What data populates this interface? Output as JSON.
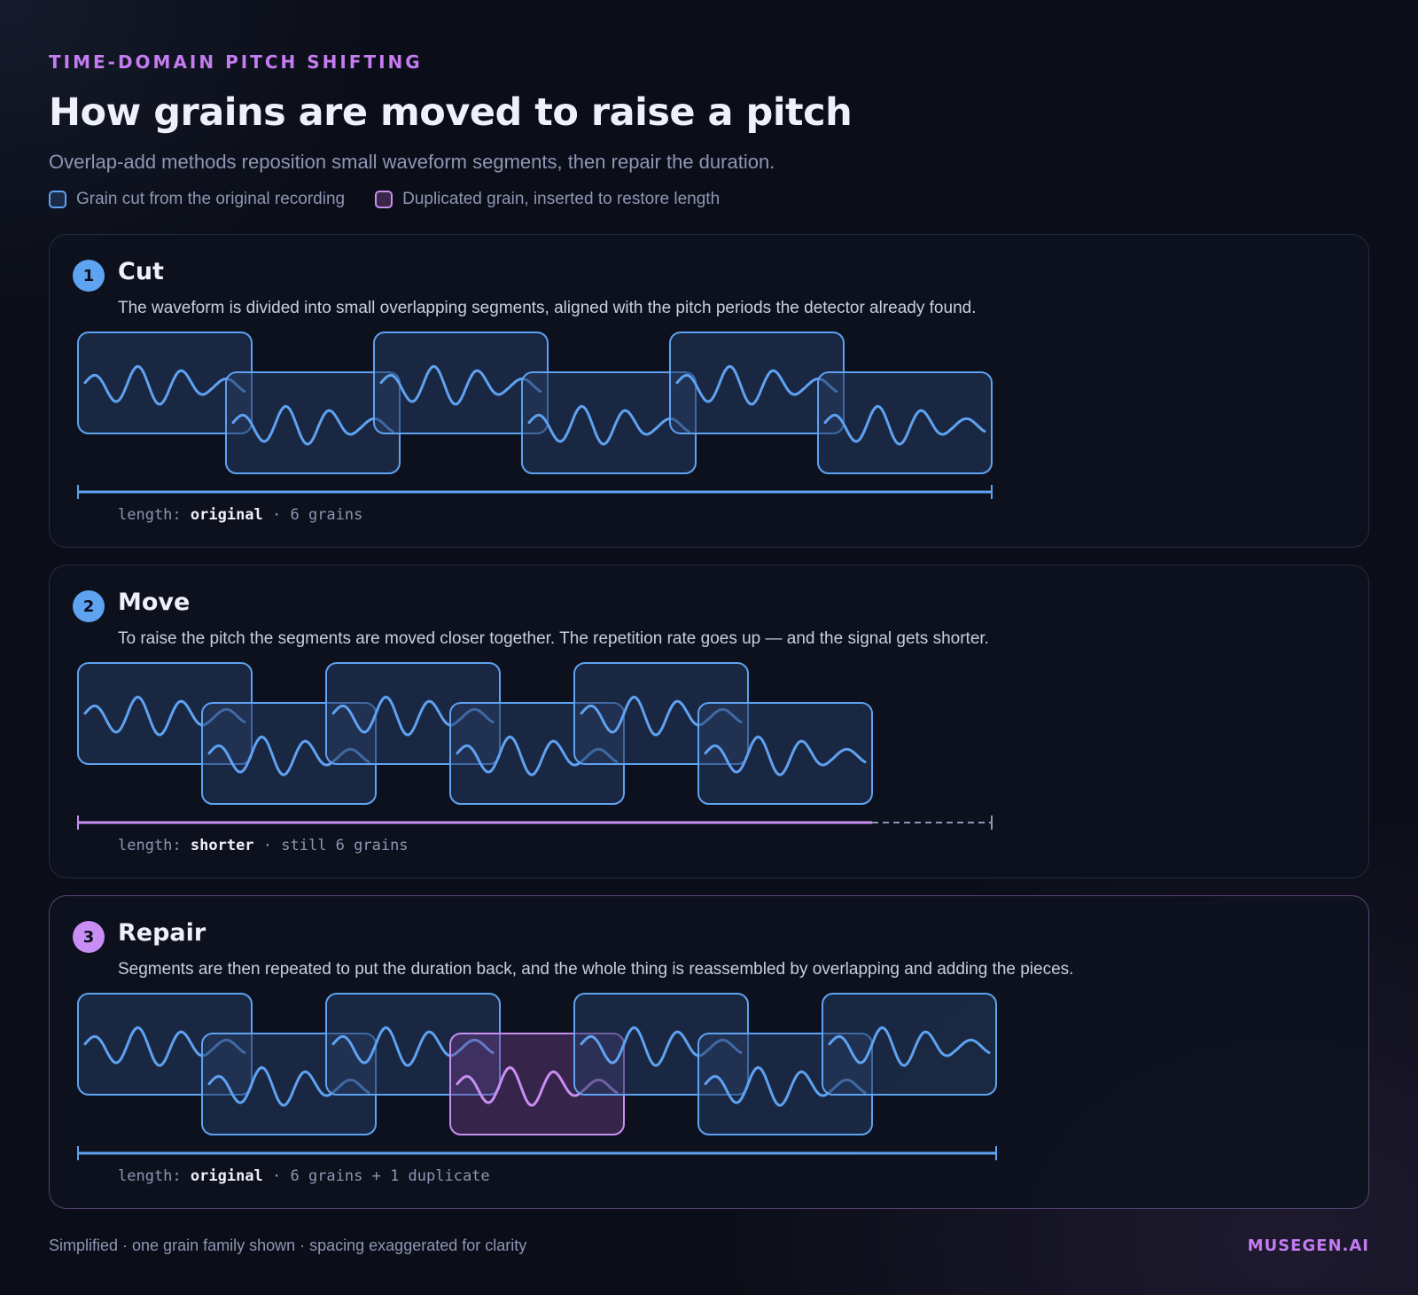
{
  "header": {
    "eyebrow": "TIME-DOMAIN PITCH SHIFTING",
    "title": "How grains are moved to raise a pitch",
    "subtitle": "Overlap-add methods reposition small waveform segments, then repair the duration."
  },
  "legend": {
    "original": "Grain cut from the original recording",
    "duplicate": "Duplicated grain, inserted to restore length"
  },
  "colors": {
    "grain": "#5ea2f2",
    "duplicate": "#c98ef3",
    "background": "#0b0e18"
  },
  "panels": [
    {
      "number": "1",
      "title": "Cut",
      "description": "The waveform is divided into small overlapping segments, aligned with the pitch periods the detector already found.",
      "length_prefix": "length: ",
      "length_value": "original",
      "length_suffix": " · 6 grains",
      "grain_count": 6,
      "duplicates": 0,
      "length_state": "original"
    },
    {
      "number": "2",
      "title": "Move",
      "description": "To raise the pitch the segments are moved closer together. The repetition rate goes up — and the signal gets shorter.",
      "length_prefix": "length: ",
      "length_value": "shorter",
      "length_suffix": " · still 6 grains",
      "grain_count": 6,
      "duplicates": 0,
      "length_state": "shorter"
    },
    {
      "number": "3",
      "title": "Repair",
      "description": "Segments are then repeated to put the duration back, and the whole thing is reassembled by overlapping and adding the pieces.",
      "length_prefix": "length: ",
      "length_value": "original",
      "length_suffix": " · 6 grains + 1 duplicate",
      "grain_count": 6,
      "duplicates": 1,
      "length_state": "original"
    }
  ],
  "footer": {
    "note": "Simplified · one grain family shown · spacing exaggerated for clarity",
    "brand": "MUSEGEN.AI"
  }
}
